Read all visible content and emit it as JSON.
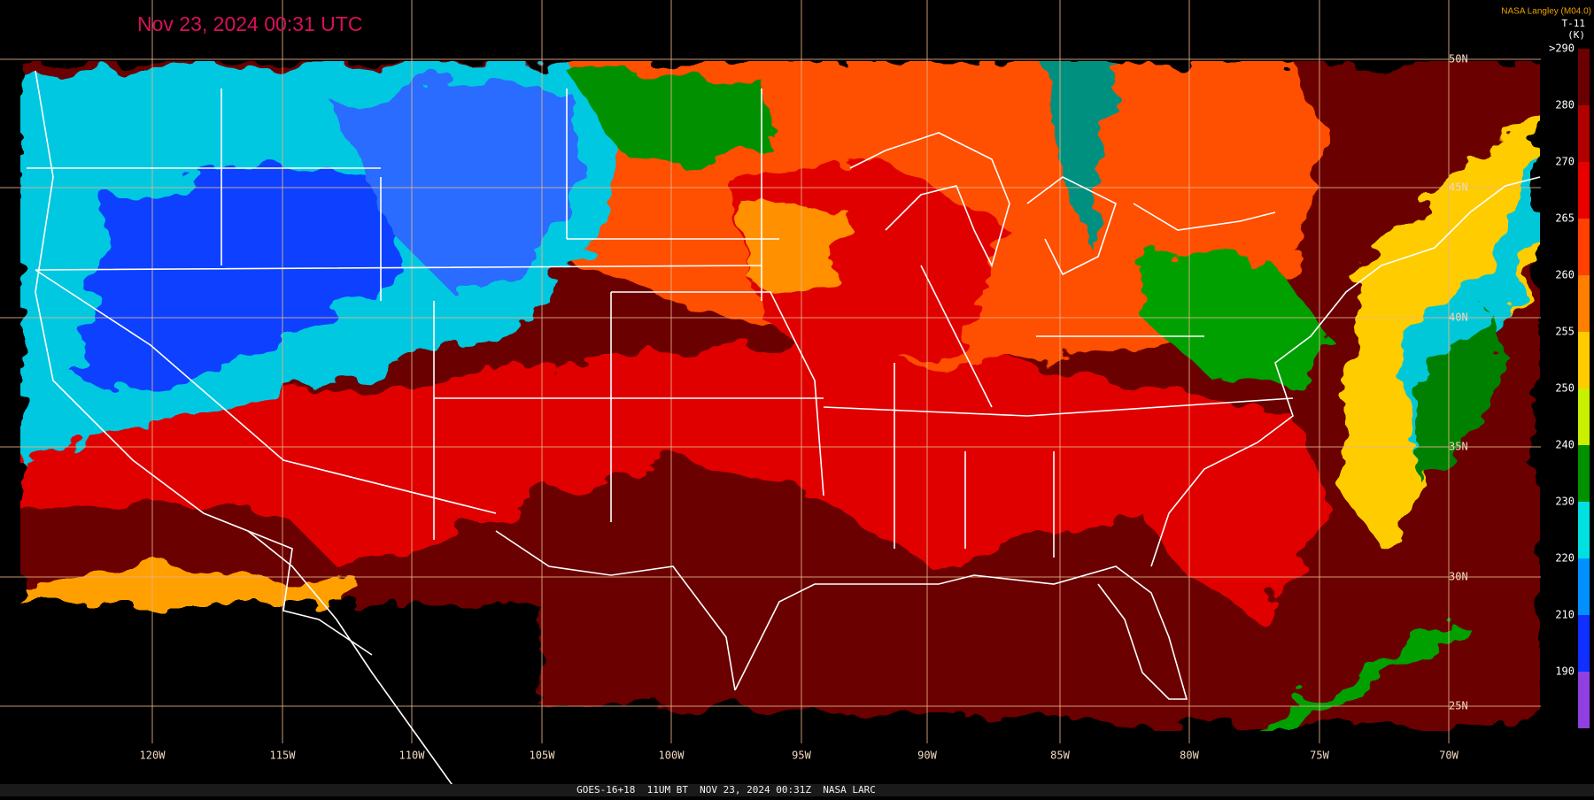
{
  "header": {
    "title": "Nov 23, 2024 00:31 UTC",
    "credit": "NASA Langley (M04.0)"
  },
  "legend": {
    "title": "T-11",
    "unit": "(K)",
    "ticks": [
      ">290",
      280,
      270,
      265,
      260,
      255,
      250,
      240,
      230,
      220,
      210,
      190
    ],
    "colors": [
      "#6b0000",
      "#b00000",
      "#e80000",
      "#ff4000",
      "#ff8000",
      "#ffcc00",
      "#c8f000",
      "#009000",
      "#00e0e0",
      "#0090ff",
      "#1030ff",
      "#9040e0"
    ]
  },
  "map": {
    "longitudes": [
      "120W",
      "115W",
      "110W",
      "105W",
      "100W",
      "95W",
      "90W",
      "85W",
      "80W",
      "75W",
      "70W"
    ],
    "latitudes": [
      "50N",
      "45N",
      "40N",
      "35N",
      "30N",
      "25N"
    ]
  },
  "footer": {
    "caption": "GOES-16+18  11UM BT  NOV 23, 2024 00:31Z  NASA LARC"
  }
}
